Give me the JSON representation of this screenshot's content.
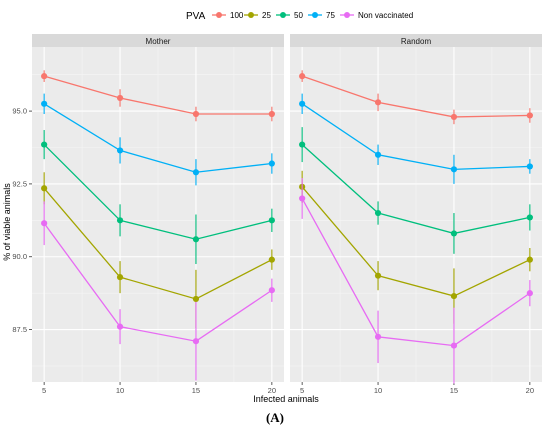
{
  "caption": "(A)",
  "chart_data": {
    "type": "line",
    "xlabel": "Infected animals",
    "ylabel": "% of viable animals",
    "legend_title": "PVA",
    "legend_position": "top",
    "grid": true,
    "x": [
      5,
      10,
      15,
      20
    ],
    "xticks": [
      "5",
      "10",
      "15",
      "20"
    ],
    "yticks": [
      87.5,
      90.0,
      92.5,
      95.0
    ],
    "ytick_labels": [
      "87.5",
      "90.0",
      "92.5",
      "95.0"
    ],
    "ylim": [
      85.7,
      97.2
    ],
    "xlim": [
      4.2,
      20.8
    ],
    "series_names": [
      "100",
      "25",
      "50",
      "75",
      "Non vaccinated"
    ],
    "colors": {
      "100": "#F8766D",
      "25": "#A3A500",
      "50": "#00BF7D",
      "75": "#00B0F6",
      "Non vaccinated": "#E76BF3"
    },
    "panels": [
      {
        "title": "Mother",
        "series": [
          {
            "name": "100",
            "values": [
              96.2,
              95.45,
              94.9,
              94.9
            ],
            "errors": [
              0.2,
              0.3,
              0.25,
              0.25
            ]
          },
          {
            "name": "25",
            "values": [
              92.35,
              89.3,
              88.55,
              89.9
            ],
            "errors": [
              0.55,
              0.55,
              1.0,
              0.35
            ]
          },
          {
            "name": "50",
            "values": [
              93.85,
              91.25,
              90.6,
              91.25
            ],
            "errors": [
              0.5,
              0.55,
              0.85,
              0.4
            ]
          },
          {
            "name": "75",
            "values": [
              95.25,
              93.65,
              92.9,
              93.2
            ],
            "errors": [
              0.35,
              0.45,
              0.45,
              0.35
            ]
          },
          {
            "name": "Non vaccinated",
            "values": [
              91.15,
              87.6,
              87.1,
              88.85
            ],
            "errors": [
              0.75,
              0.6,
              1.35,
              0.4
            ]
          }
        ]
      },
      {
        "title": "Random",
        "series": [
          {
            "name": "100",
            "values": [
              96.2,
              95.3,
              94.8,
              94.85
            ],
            "errors": [
              0.2,
              0.3,
              0.25,
              0.25
            ]
          },
          {
            "name": "25",
            "values": [
              92.4,
              89.35,
              88.65,
              89.9
            ],
            "errors": [
              0.55,
              0.5,
              0.95,
              0.4
            ]
          },
          {
            "name": "50",
            "values": [
              93.85,
              91.5,
              90.8,
              91.35
            ],
            "errors": [
              0.6,
              0.4,
              0.7,
              0.45
            ]
          },
          {
            "name": "75",
            "values": [
              95.25,
              93.5,
              93.0,
              93.1
            ],
            "errors": [
              0.35,
              0.35,
              0.5,
              0.25
            ]
          },
          {
            "name": "Non vaccinated",
            "values": [
              92.0,
              87.25,
              86.95,
              88.75
            ],
            "errors": [
              0.7,
              0.9,
              1.3,
              0.45
            ]
          }
        ]
      }
    ]
  }
}
